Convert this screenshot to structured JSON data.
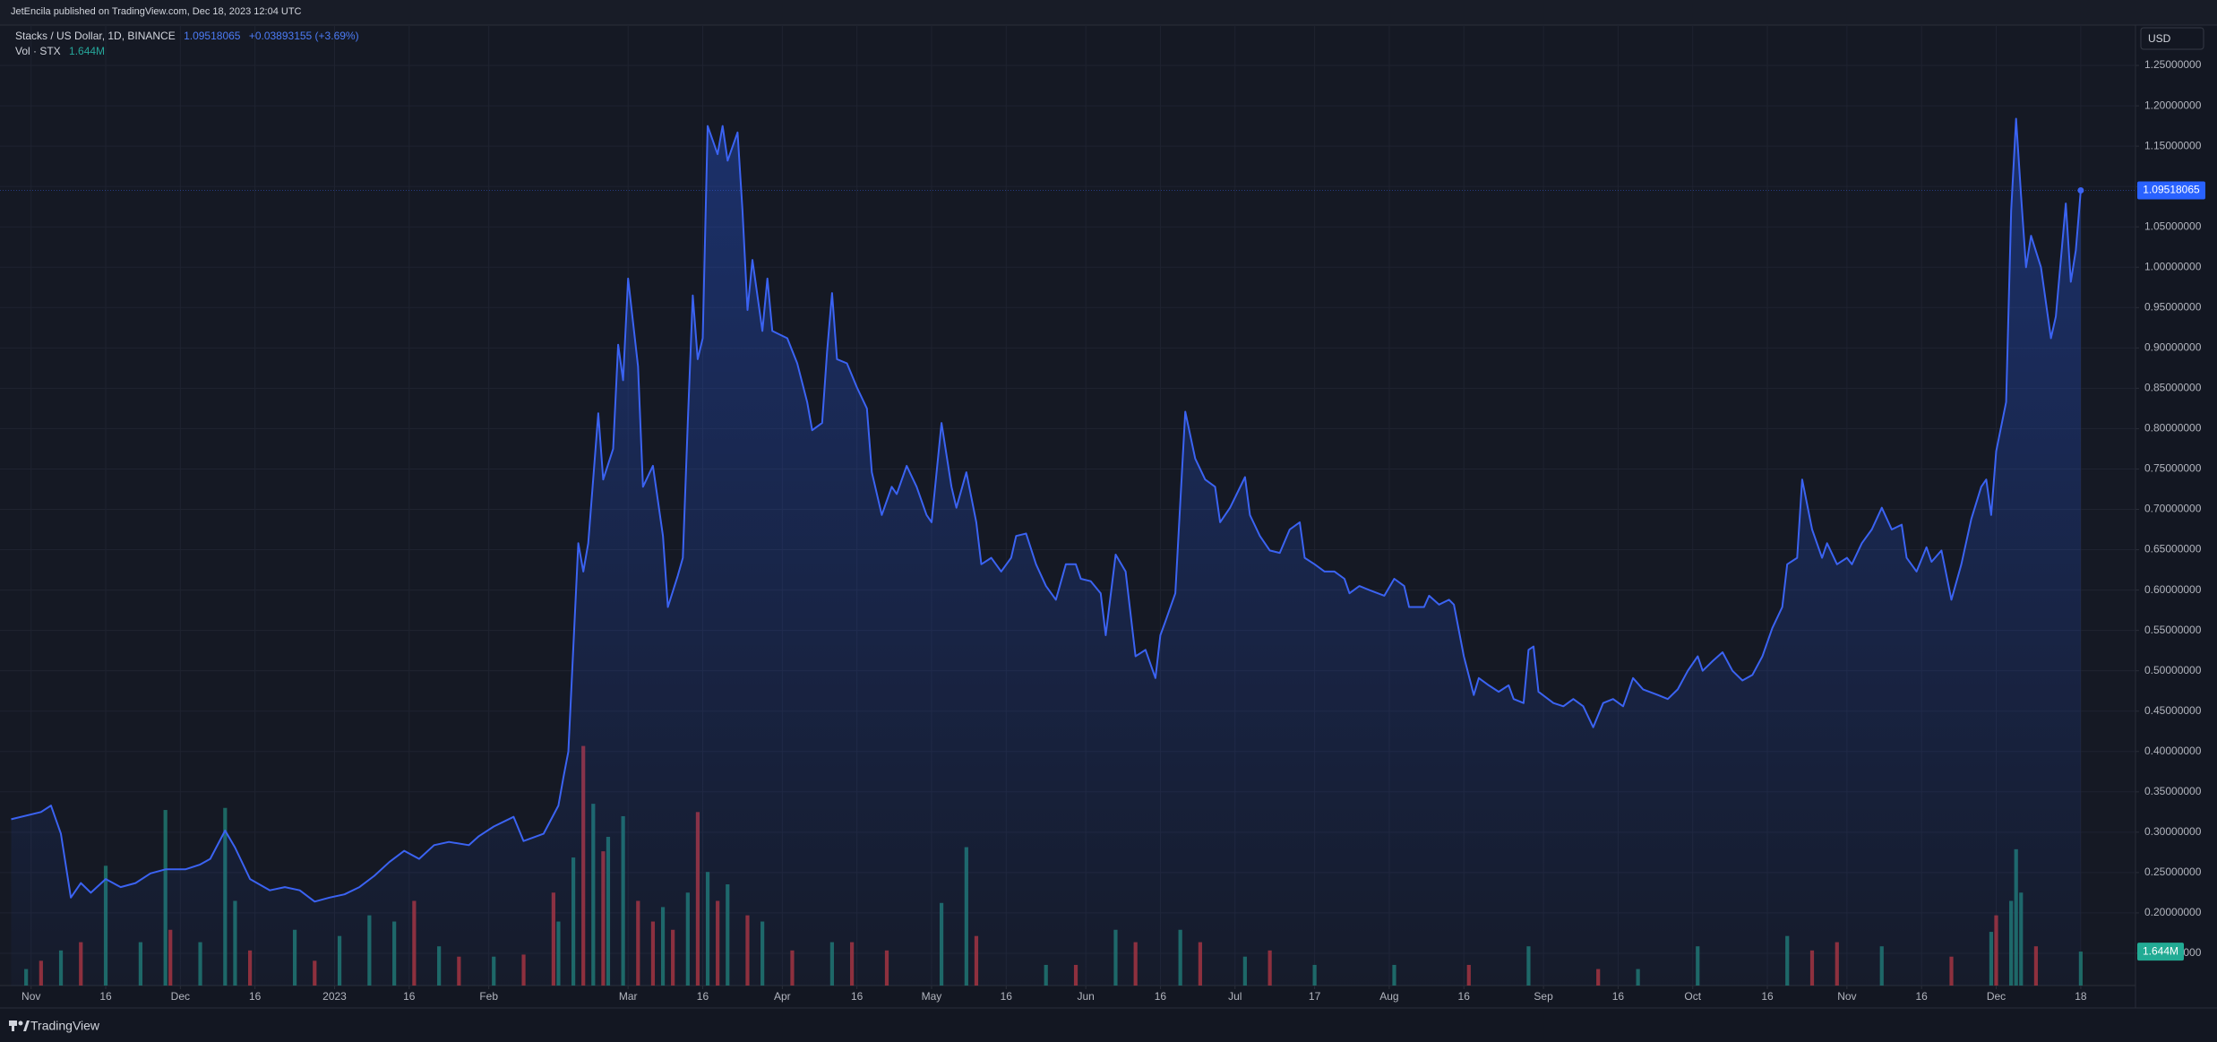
{
  "header": {
    "publisher": "JetEncila published on TradingView.com, Dec 18, 2023 12:04 UTC",
    "currency": "USD",
    "brand": "TradingView"
  },
  "legend": {
    "symbol": "Stacks / US Dollar, 1D, BINANCE",
    "change": "+0.03893155 (+3.69%)",
    "vol_title": "Vol · STX",
    "vol_value": "1.644M"
  },
  "chart_data": [
    {
      "type": "line",
      "color": "#3b63f2",
      "grid": true,
      "last_price": 1.09518065,
      "x": [
        -4,
        2,
        4,
        6,
        8,
        10,
        12,
        15,
        18,
        21,
        24,
        27,
        31,
        34,
        36,
        39,
        41,
        44,
        48,
        51,
        54,
        57,
        60,
        63,
        66,
        69,
        72,
        75,
        78,
        81,
        84,
        88,
        90,
        93,
        97,
        99,
        103,
        106,
        107,
        108,
        110,
        111,
        112,
        114,
        115,
        117,
        118,
        119,
        120,
        122,
        123,
        125,
        127,
        128,
        130,
        131,
        132,
        133,
        134,
        135,
        136,
        138,
        139,
        140,
        142,
        143,
        144,
        145,
        147,
        148,
        149,
        152,
        154,
        156,
        157,
        159,
        160,
        161,
        162,
        164,
        166,
        168,
        169,
        171,
        173,
        174,
        176,
        178,
        180,
        181,
        183,
        185,
        186,
        188,
        190,
        191,
        193,
        195,
        197,
        198,
        200,
        202,
        204,
        206,
        208,
        210,
        211,
        213,
        215,
        216,
        218,
        220,
        222,
        224,
        226,
        227,
        228,
        230,
        232,
        234,
        236,
        238,
        239,
        241,
        244,
        245,
        247,
        249,
        251,
        253,
        255,
        256,
        258,
        260,
        262,
        264,
        265,
        267,
        269,
        272,
        274,
        276,
        277,
        280,
        281,
        283,
        285,
        286,
        288,
        290,
        291,
        293,
        295,
        297,
        298,
        300,
        301,
        302,
        303,
        306,
        308,
        310,
        312,
        314,
        316,
        318,
        320,
        322,
        324,
        327,
        329,
        331,
        333,
        335,
        336,
        338,
        340,
        342,
        344,
        346,
        348,
        350,
        352,
        353,
        355,
        356,
        358,
        360,
        361,
        363,
        365,
        366,
        368,
        370,
        372,
        374,
        376,
        377,
        379,
        381,
        382,
        384,
        386,
        388,
        390,
        392,
        393,
        394,
        395,
        397,
        398,
        399,
        400,
        401,
        402,
        404,
        406,
        407,
        409,
        410,
        411,
        412
      ],
      "values": [
        0.316,
        0.325,
        0.333,
        0.298,
        0.219,
        0.237,
        0.225,
        0.242,
        0.232,
        0.237,
        0.249,
        0.254,
        0.254,
        0.26,
        0.267,
        0.302,
        0.281,
        0.242,
        0.228,
        0.232,
        0.228,
        0.214,
        0.219,
        0.223,
        0.232,
        0.246,
        0.263,
        0.277,
        0.267,
        0.284,
        0.288,
        0.284,
        0.295,
        0.307,
        0.319,
        0.289,
        0.298,
        0.333,
        0.368,
        0.4,
        0.658,
        0.623,
        0.658,
        0.819,
        0.737,
        0.775,
        0.904,
        0.86,
        0.986,
        0.877,
        0.728,
        0.754,
        0.667,
        0.579,
        0.618,
        0.64,
        0.807,
        0.965,
        0.886,
        0.912,
        1.175,
        1.14,
        1.175,
        1.132,
        1.167,
        1.07,
        0.947,
        1.009,
        0.921,
        0.986,
        0.921,
        0.912,
        0.881,
        0.833,
        0.798,
        0.807,
        0.895,
        0.968,
        0.886,
        0.881,
        0.851,
        0.825,
        0.746,
        0.693,
        0.728,
        0.719,
        0.754,
        0.728,
        0.693,
        0.684,
        0.807,
        0.728,
        0.702,
        0.746,
        0.684,
        0.632,
        0.64,
        0.623,
        0.64,
        0.667,
        0.67,
        0.632,
        0.605,
        0.588,
        0.632,
        0.632,
        0.614,
        0.611,
        0.596,
        0.544,
        0.644,
        0.623,
        0.518,
        0.526,
        0.491,
        0.544,
        0.561,
        0.596,
        0.821,
        0.763,
        0.737,
        0.728,
        0.684,
        0.702,
        0.74,
        0.693,
        0.667,
        0.649,
        0.646,
        0.675,
        0.684,
        0.64,
        0.632,
        0.623,
        0.623,
        0.614,
        0.596,
        0.605,
        0.6,
        0.593,
        0.614,
        0.605,
        0.579,
        0.579,
        0.593,
        0.582,
        0.588,
        0.582,
        0.518,
        0.47,
        0.491,
        0.482,
        0.474,
        0.482,
        0.465,
        0.46,
        0.526,
        0.53,
        0.474,
        0.46,
        0.456,
        0.465,
        0.456,
        0.43,
        0.46,
        0.465,
        0.456,
        0.491,
        0.477,
        0.47,
        0.465,
        0.477,
        0.5,
        0.518,
        0.5,
        0.512,
        0.523,
        0.5,
        0.488,
        0.495,
        0.518,
        0.553,
        0.579,
        0.632,
        0.64,
        0.737,
        0.675,
        0.64,
        0.658,
        0.632,
        0.64,
        0.632,
        0.658,
        0.675,
        0.702,
        0.675,
        0.681,
        0.64,
        0.623,
        0.653,
        0.635,
        0.649,
        0.588,
        0.632,
        0.688,
        0.728,
        0.737,
        0.693,
        0.772,
        0.833,
        1.07,
        1.184,
        1.088,
        1.0,
        1.039,
        1.0,
        0.912,
        0.939,
        1.079,
        0.982,
        1.021,
        1.09518065
      ],
      "xlim": [
        -4,
        423
      ],
      "xticks": [
        {
          "value": 0,
          "label": "Nov"
        },
        {
          "value": 15,
          "label": "16"
        },
        {
          "value": 30,
          "label": "Dec"
        },
        {
          "value": 45,
          "label": "16"
        },
        {
          "value": 61,
          "label": "2023"
        },
        {
          "value": 76,
          "label": "16"
        },
        {
          "value": 92,
          "label": "Feb"
        },
        {
          "value": 120,
          "label": "Mar"
        },
        {
          "value": 135,
          "label": "16"
        },
        {
          "value": 151,
          "label": "Apr"
        },
        {
          "value": 166,
          "label": "16"
        },
        {
          "value": 181,
          "label": "May"
        },
        {
          "value": 196,
          "label": "16"
        },
        {
          "value": 212,
          "label": "Jun"
        },
        {
          "value": 227,
          "label": "16"
        },
        {
          "value": 242,
          "label": "Jul"
        },
        {
          "value": 258,
          "label": "17"
        },
        {
          "value": 273,
          "label": "Aug"
        },
        {
          "value": 288,
          "label": "16"
        },
        {
          "value": 304,
          "label": "Sep"
        },
        {
          "value": 319,
          "label": "16"
        },
        {
          "value": 334,
          "label": "Oct"
        },
        {
          "value": 349,
          "label": "16"
        },
        {
          "value": 365,
          "label": "Nov"
        },
        {
          "value": 380,
          "label": "16"
        },
        {
          "value": 395,
          "label": "Dec"
        },
        {
          "value": 412,
          "label": "18"
        }
      ],
      "ylim": [
        0.11,
        1.3
      ],
      "yticks": [
        {
          "value": 0.15,
          "label": "0.15000000"
        },
        {
          "value": 0.2,
          "label": "0.20000000"
        },
        {
          "value": 0.25,
          "label": "0.25000000"
        },
        {
          "value": 0.3,
          "label": "0.30000000"
        },
        {
          "value": 0.35,
          "label": "0.35000000"
        },
        {
          "value": 0.4,
          "label": "0.40000000"
        },
        {
          "value": 0.45,
          "label": "0.45000000"
        },
        {
          "value": 0.5,
          "label": "0.50000000"
        },
        {
          "value": 0.55,
          "label": "0.55000000"
        },
        {
          "value": 0.6,
          "label": "0.60000000"
        },
        {
          "value": 0.65,
          "label": "0.65000000"
        },
        {
          "value": 0.7,
          "label": "0.70000000"
        },
        {
          "value": 0.75,
          "label": "0.75000000"
        },
        {
          "value": 0.8,
          "label": "0.80000000"
        },
        {
          "value": 0.85,
          "label": "0.85000000"
        },
        {
          "value": 0.9,
          "label": "0.90000000"
        },
        {
          "value": 0.95,
          "label": "0.95000000"
        },
        {
          "value": 1.0,
          "label": "1.00000000"
        },
        {
          "value": 1.05,
          "label": "1.05000000"
        },
        {
          "value": 1.1,
          "label": "1.10000000"
        },
        {
          "value": 1.15,
          "label": "1.15000000"
        },
        {
          "value": 1.2,
          "label": "1.20000000"
        },
        {
          "value": 1.25,
          "label": "1.25000000"
        }
      ]
    },
    {
      "type": "bar",
      "ylim": [
        0,
        46.5
      ],
      "series": [
        {
          "color": "#1f776e",
          "x": [
            -1,
            6,
            15,
            22,
            27,
            34,
            39,
            41,
            53,
            62,
            68,
            73,
            82,
            93,
            106,
            109,
            113,
            116,
            119,
            127,
            132,
            136,
            140,
            147,
            161,
            183,
            188,
            204,
            218,
            231,
            244,
            258,
            274,
            301,
            323,
            335,
            353,
            372,
            394,
            398,
            399,
            400,
            412
          ],
          "values": [
            0.8,
            1.7,
            5.8,
            2.1,
            8.5,
            2.1,
            8.6,
            4.1,
            2.7,
            2.4,
            3.4,
            3.1,
            1.9,
            1.4,
            3.1,
            6.2,
            8.8,
            7.2,
            8.2,
            3.8,
            4.5,
            5.5,
            4.9,
            3.1,
            2.1,
            4.0,
            6.7,
            1.0,
            2.7,
            2.7,
            1.4,
            1.0,
            1.0,
            1.9,
            0.8,
            1.9,
            2.4,
            1.9,
            2.6,
            4.1,
            6.6,
            4.5,
            1.644
          ]
        },
        {
          "color": "#a7333b",
          "x": [
            2,
            10,
            28,
            44,
            57,
            77,
            86,
            99,
            105,
            111,
            115,
            122,
            125,
            129,
            134,
            138,
            144,
            153,
            165,
            172,
            190,
            210,
            222,
            235,
            249,
            289,
            315,
            358,
            363,
            386,
            395,
            403
          ],
          "values": [
            1.2,
            2.1,
            2.7,
            1.7,
            1.2,
            4.1,
            1.4,
            1.5,
            4.5,
            11.6,
            6.5,
            4.1,
            3.1,
            2.7,
            8.4,
            4.1,
            3.4,
            1.7,
            2.1,
            1.7,
            2.4,
            1.0,
            2.1,
            2.1,
            1.7,
            1.0,
            0.8,
            1.7,
            2.1,
            1.4,
            3.4,
            1.9
          ]
        }
      ]
    }
  ]
}
